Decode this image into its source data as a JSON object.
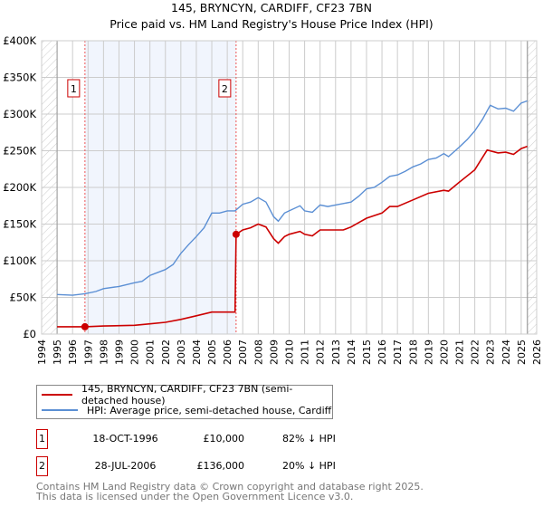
{
  "chart_data": {
    "type": "line",
    "title": "145, BRYNCYN, CARDIFF, CF23 7BN",
    "subtitle": "Price paid vs. HM Land Registry's House Price Index (HPI)",
    "xlim": [
      1994,
      2026
    ],
    "ylim": [
      0,
      400000
    ],
    "x_ticks": [
      "1994",
      "1995",
      "1996",
      "1997",
      "1998",
      "1999",
      "2000",
      "2001",
      "2002",
      "2003",
      "2004",
      "2005",
      "2006",
      "2007",
      "2008",
      "2009",
      "2010",
      "2011",
      "2012",
      "2013",
      "2014",
      "2015",
      "2016",
      "2017",
      "2018",
      "2019",
      "2020",
      "2021",
      "2022",
      "2023",
      "2024",
      "2025",
      "2026"
    ],
    "y_ticks": [
      {
        "v": 0,
        "label": "£0"
      },
      {
        "v": 50000,
        "label": "£50K"
      },
      {
        "v": 100000,
        "label": "£100K"
      },
      {
        "v": 150000,
        "label": "£150K"
      },
      {
        "v": 200000,
        "label": "£200K"
      },
      {
        "v": 250000,
        "label": "£250K"
      },
      {
        "v": 300000,
        "label": "£300K"
      },
      {
        "v": 350000,
        "label": "£350K"
      },
      {
        "v": 400000,
        "label": "£400K"
      }
    ],
    "grid": true,
    "series": [
      {
        "name": "145, BRYNCYN, CARDIFF, CF23 7BN (semi-detached house)",
        "color": "#cc0000",
        "x": [
          1995,
          1996.8,
          1998,
          2000,
          2001,
          2002,
          2003,
          2004,
          2005,
          2006.5,
          2006.57,
          2007,
          2007.5,
          2008,
          2008.5,
          2009,
          2009.3,
          2009.7,
          2010,
          2010.7,
          2011,
          2011.5,
          2012,
          2013,
          2013.5,
          2014,
          2015,
          2016,
          2016.5,
          2017,
          2018,
          2019,
          2020,
          2020.3,
          2021,
          2022,
          2022.8,
          2023.5,
          2024,
          2024.5,
          2025,
          2025.4
        ],
        "y": [
          10000,
          10000,
          11000,
          12000,
          14000,
          16000,
          20000,
          25000,
          30000,
          30000,
          136000,
          142000,
          145000,
          150000,
          146000,
          130000,
          124000,
          133000,
          136000,
          140000,
          136000,
          134000,
          142000,
          142000,
          142000,
          146000,
          158000,
          165000,
          174000,
          174000,
          183000,
          192000,
          196000,
          195000,
          207000,
          224000,
          251000,
          247000,
          248000,
          245000,
          253000,
          256000
        ]
      },
      {
        "name": "HPI: Average price, semi-detached house, Cardiff",
        "color": "#5b8fd4",
        "x": [
          1995,
          1996,
          1996.8,
          1997.5,
          1998,
          1999,
          2000,
          2000.5,
          2001,
          2002,
          2002.5,
          2003,
          2003.5,
          2004,
          2004.5,
          2005,
          2005.5,
          2006,
          2006.5,
          2007,
          2007.5,
          2008,
          2008.5,
          2009,
          2009.3,
          2009.7,
          2010,
          2010.7,
          2011,
          2011.5,
          2012,
          2012.5,
          2013,
          2013.5,
          2014,
          2014.5,
          2015,
          2015.5,
          2016,
          2016.5,
          2017,
          2017.5,
          2018,
          2018.5,
          2019,
          2019.5,
          2020,
          2020.3,
          2021,
          2021.5,
          2022,
          2022.5,
          2023,
          2023.5,
          2024,
          2024.5,
          2025,
          2025.4
        ],
        "y": [
          54000,
          53000,
          55000,
          58000,
          62000,
          65000,
          70000,
          72000,
          80000,
          88000,
          95000,
          110000,
          122000,
          133000,
          145000,
          165000,
          165000,
          168000,
          168000,
          177000,
          180000,
          186000,
          180000,
          160000,
          154000,
          165000,
          168000,
          175000,
          168000,
          166000,
          176000,
          174000,
          176000,
          178000,
          180000,
          188000,
          198000,
          200000,
          207000,
          215000,
          217000,
          222000,
          228000,
          232000,
          238000,
          240000,
          246000,
          242000,
          255000,
          265000,
          277000,
          293000,
          312000,
          307000,
          308000,
          304000,
          315000,
          318000
        ]
      }
    ],
    "sales": [
      {
        "label": "1",
        "x": 1996.8,
        "y": 10000,
        "date": "18-OCT-1996",
        "price": "£10,000",
        "hpi": "82% ↓ HPI"
      },
      {
        "label": "2",
        "x": 2006.57,
        "y": 136000,
        "date": "28-JUL-2006",
        "price": "£136,000",
        "hpi": "20% ↓ HPI"
      }
    ],
    "legend_position": "below"
  },
  "footer": {
    "line1": "Contains HM Land Registry data © Crown copyright and database right 2025.",
    "line2": "This data is licensed under the Open Government Licence v3.0."
  }
}
